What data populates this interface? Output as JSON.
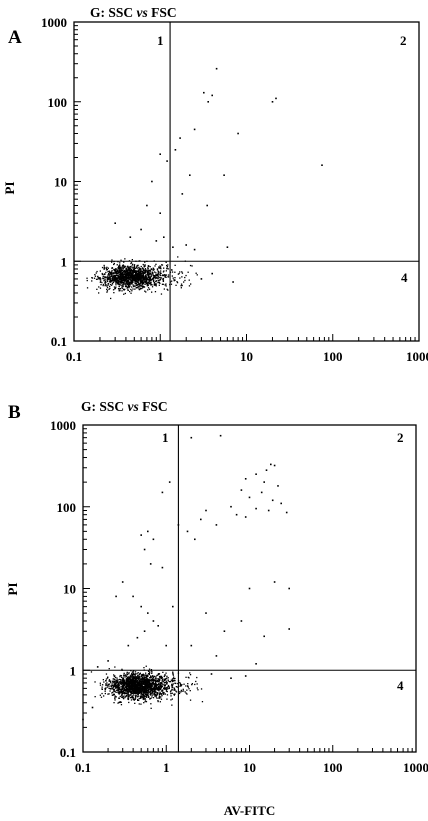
{
  "figure": {
    "xlabel": "AV-FITC"
  },
  "chart_data": [
    {
      "type": "scatter",
      "panel_label": "A",
      "title_parts": [
        "G: SSC ",
        "vs",
        " FSC"
      ],
      "xlabel": "",
      "ylabel": "PI",
      "xscale": "log",
      "yscale": "log",
      "xlim": [
        0.1,
        1000
      ],
      "ylim": [
        0.1,
        1000
      ],
      "x_ticks": [
        "0.1",
        "1",
        "10",
        "100",
        "1000"
      ],
      "y_ticks": [
        "0.1",
        "1",
        "10",
        "100",
        "1000"
      ],
      "quadrant_gate": {
        "x": 1.3,
        "y": 1.0
      },
      "quadrant_labels": [
        "1",
        "2",
        "4"
      ],
      "cluster": {
        "x_center": 0.45,
        "y_center": 0.65,
        "approx_points": 1400
      },
      "sparse_points": [
        [
          4.5,
          260
        ],
        [
          3.2,
          130
        ],
        [
          4.0,
          120
        ],
        [
          3.6,
          100
        ],
        [
          22,
          110
        ],
        [
          20,
          100
        ],
        [
          8,
          40
        ],
        [
          2.5,
          45
        ],
        [
          1.7,
          35
        ],
        [
          1.2,
          18
        ],
        [
          1.5,
          25
        ],
        [
          1.0,
          22
        ],
        [
          2.2,
          12
        ],
        [
          5.5,
          12
        ],
        [
          75,
          16
        ],
        [
          1.8,
          7
        ],
        [
          3.5,
          5
        ],
        [
          0.8,
          10
        ],
        [
          0.7,
          5
        ],
        [
          1.0,
          4
        ],
        [
          0.3,
          3
        ],
        [
          0.6,
          2.5
        ],
        [
          1.1,
          2
        ],
        [
          1.4,
          1.5
        ],
        [
          2.0,
          1.6
        ],
        [
          6,
          1.5
        ],
        [
          2.5,
          1.4
        ],
        [
          0.45,
          2
        ],
        [
          0.9,
          1.8
        ],
        [
          3,
          0.6
        ],
        [
          7,
          0.55
        ],
        [
          4,
          0.7
        ]
      ]
    },
    {
      "type": "scatter",
      "panel_label": "B",
      "title_parts": [
        "G: SSC ",
        "vs",
        " FSC"
      ],
      "xlabel": "AV-FITC",
      "ylabel": "PI",
      "xscale": "log",
      "yscale": "log",
      "xlim": [
        0.1,
        1000
      ],
      "ylim": [
        0.1,
        1000
      ],
      "x_ticks": [
        "0.1",
        "1",
        "10",
        "100",
        "1000"
      ],
      "y_ticks": [
        "0.1",
        "1",
        "10",
        "100",
        "1000"
      ],
      "quadrant_gate": {
        "x": 1.4,
        "y": 1.0
      },
      "quadrant_labels": [
        "1",
        "2",
        "4"
      ],
      "cluster": {
        "x_center": 0.45,
        "y_center": 0.65,
        "approx_points": 1800
      },
      "sparse_points": [
        [
          4.5,
          740
        ],
        [
          2.0,
          700
        ],
        [
          18,
          330
        ],
        [
          20,
          320
        ],
        [
          16,
          280
        ],
        [
          12,
          250
        ],
        [
          9,
          220
        ],
        [
          15,
          200
        ],
        [
          22,
          180
        ],
        [
          8,
          160
        ],
        [
          14,
          150
        ],
        [
          10,
          130
        ],
        [
          19,
          120
        ],
        [
          24,
          110
        ],
        [
          6,
          100
        ],
        [
          12,
          95
        ],
        [
          17,
          90
        ],
        [
          28,
          85
        ],
        [
          7,
          80
        ],
        [
          9,
          75
        ],
        [
          3.0,
          90
        ],
        [
          2.6,
          70
        ],
        [
          4,
          60
        ],
        [
          1.1,
          200
        ],
        [
          0.9,
          150
        ],
        [
          0.6,
          50
        ],
        [
          0.5,
          45
        ],
        [
          0.7,
          40
        ],
        [
          0.55,
          30
        ],
        [
          0.65,
          20
        ],
        [
          1.4,
          60
        ],
        [
          1.8,
          50
        ],
        [
          2.2,
          40
        ],
        [
          0.4,
          8
        ],
        [
          0.5,
          6
        ],
        [
          0.6,
          5
        ],
        [
          0.7,
          4
        ],
        [
          0.55,
          3
        ],
        [
          0.45,
          2.5
        ],
        [
          0.8,
          3.5
        ],
        [
          1.0,
          2
        ],
        [
          0.35,
          2
        ],
        [
          0.25,
          8
        ],
        [
          3,
          5
        ],
        [
          5,
          3
        ],
        [
          8,
          4
        ],
        [
          15,
          2.6
        ],
        [
          30,
          3.2
        ],
        [
          30,
          10
        ],
        [
          10,
          10
        ],
        [
          20,
          12
        ],
        [
          0.3,
          12
        ],
        [
          0.9,
          18
        ],
        [
          1.2,
          6
        ],
        [
          2,
          2
        ],
        [
          4,
          1.5
        ],
        [
          12,
          1.2
        ],
        [
          0.2,
          1.3
        ],
        [
          0.15,
          1.1
        ],
        [
          0.13,
          0.35
        ],
        [
          0.1,
          0.25
        ],
        [
          3.5,
          0.9
        ],
        [
          6,
          0.8
        ],
        [
          9,
          0.85
        ]
      ]
    }
  ]
}
